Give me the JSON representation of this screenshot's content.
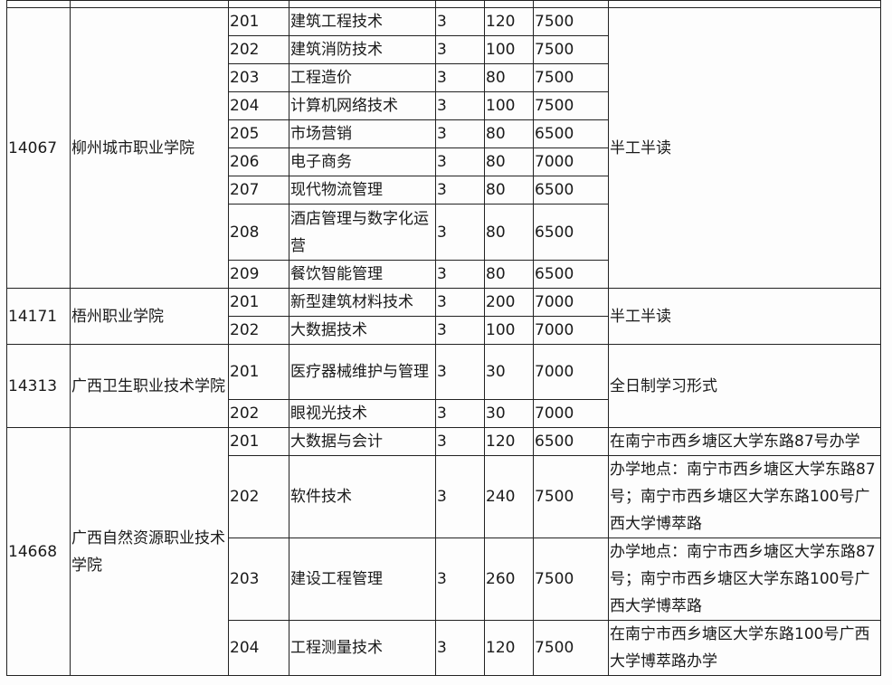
{
  "institutions": [
    {
      "code": "14067",
      "name": "柳州城市职业学院",
      "note": "半工半读",
      "programs": [
        {
          "code": "201",
          "major": "建筑工程技术",
          "years": "3",
          "plan": "120",
          "fee": "7500"
        },
        {
          "code": "202",
          "major": "建筑消防技术",
          "years": "3",
          "plan": "100",
          "fee": "7500"
        },
        {
          "code": "203",
          "major": "工程造价",
          "years": "3",
          "plan": "80",
          "fee": "7500"
        },
        {
          "code": "204",
          "major": "计算机网络技术",
          "years": "3",
          "plan": "100",
          "fee": "7500"
        },
        {
          "code": "205",
          "major": "市场营销",
          "years": "3",
          "plan": "80",
          "fee": "6500"
        },
        {
          "code": "206",
          "major": "电子商务",
          "years": "3",
          "plan": "80",
          "fee": "7000"
        },
        {
          "code": "207",
          "major": "现代物流管理",
          "years": "3",
          "plan": "80",
          "fee": "6500"
        },
        {
          "code": "208",
          "major": "酒店管理与数字化运营",
          "years": "3",
          "plan": "80",
          "fee": "6500"
        },
        {
          "code": "209",
          "major": "餐饮智能管理",
          "years": "3",
          "plan": "80",
          "fee": "6500"
        }
      ]
    },
    {
      "code": "14171",
      "name": "梧州职业学院",
      "note": "半工半读",
      "programs": [
        {
          "code": "201",
          "major": "新型建筑材料技术",
          "years": "3",
          "plan": "200",
          "fee": "7000"
        },
        {
          "code": "202",
          "major": "大数据技术",
          "years": "3",
          "plan": "100",
          "fee": "7000"
        }
      ]
    },
    {
      "code": "14313",
      "name": "广西卫生职业技术学院",
      "note": "全日制学习形式",
      "programs": [
        {
          "code": "201",
          "major": "医疗器械维护与管理",
          "years": "3",
          "plan": "30",
          "fee": "7000"
        },
        {
          "code": "202",
          "major": "眼视光技术",
          "years": "3",
          "plan": "30",
          "fee": "7000"
        }
      ]
    },
    {
      "code": "14668",
      "name": "广西自然资源职业技术学院",
      "note": null,
      "programs": [
        {
          "code": "201",
          "major": "大数据与会计",
          "years": "3",
          "plan": "120",
          "fee": "6500",
          "note": "在南宁市西乡塘区大学东路87号办学"
        },
        {
          "code": "202",
          "major": "软件技术",
          "years": "3",
          "plan": "240",
          "fee": "7500",
          "note": "办学地点：南宁市西乡塘区大学东路87号；南宁市西乡塘区大学东路100号广西大学博萃路"
        },
        {
          "code": "203",
          "major": "建设工程管理",
          "years": "3",
          "plan": "260",
          "fee": "7500",
          "note": "办学地点：南宁市西乡塘区大学东路87号；南宁市西乡塘区大学东路100号广西大学博萃路"
        },
        {
          "code": "204",
          "major": "工程测量技术",
          "years": "3",
          "plan": "120",
          "fee": "7500",
          "note": "在南宁市西乡塘区大学东路100号广西大学博萃路办学"
        }
      ]
    }
  ]
}
